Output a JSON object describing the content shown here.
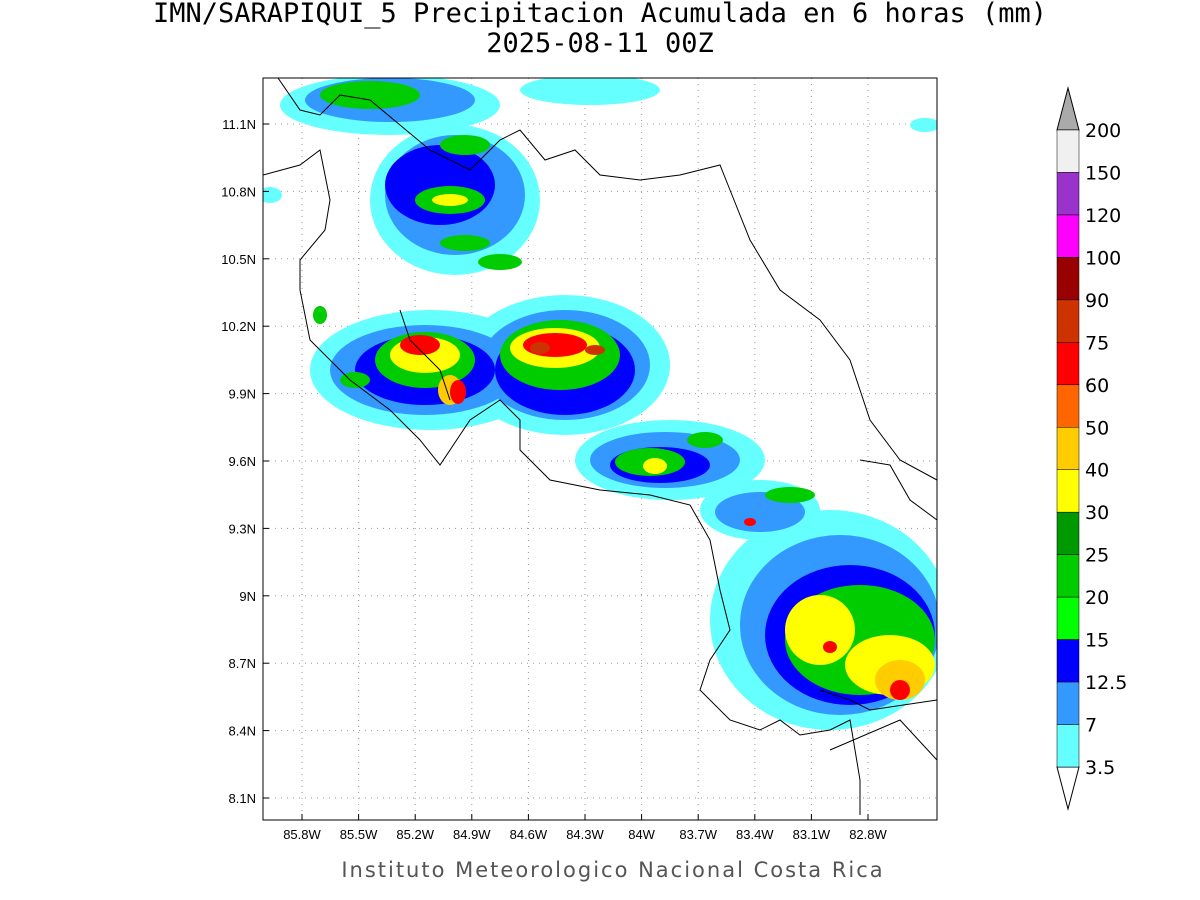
{
  "header": {
    "title": "IMN/SARAPIQUI_5 Precipitacion Acumulada en 6 horas (mm)",
    "subtitle": "2025-08-11 00Z"
  },
  "map": {
    "x_ticks": [
      "85.8W",
      "85.5W",
      "85.2W",
      "84.9W",
      "84.6W",
      "84.3W",
      "84W",
      "83.7W",
      "83.4W",
      "83.1W",
      "82.8W"
    ],
    "y_ticks": [
      "11.1N",
      "10.8N",
      "10.5N",
      "10.2N",
      "9.9N",
      "9.6N",
      "9.3N",
      "9N",
      "8.7N",
      "8.4N",
      "8.1N"
    ]
  },
  "colorbar": {
    "levels": [
      200,
      150,
      120,
      100,
      90,
      75,
      60,
      50,
      40,
      30,
      25,
      20,
      15,
      12.5,
      7,
      3.5
    ],
    "colors": [
      "#f0f0f0",
      "#9933cc",
      "#ff00ff",
      "#990000",
      "#cc3300",
      "#ff0000",
      "#ff6600",
      "#ffcc00",
      "#ffff00",
      "#009900",
      "#00cc00",
      "#00ff00",
      "#0000ff",
      "#3399ff",
      "#66ffff"
    ]
  },
  "footer": "Instituto Meteorologico Nacional Costa Rica"
}
